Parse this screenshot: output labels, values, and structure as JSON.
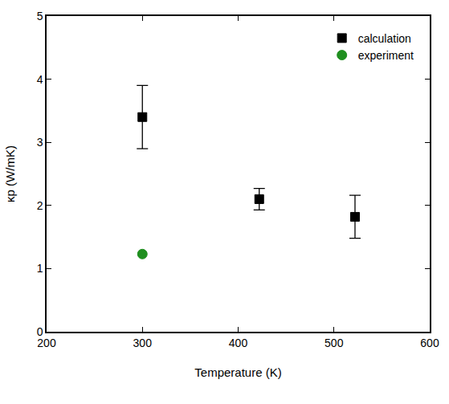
{
  "chart_data": {
    "type": "scatter",
    "x_label": "Temperature (K)",
    "y_label": "κp (W/mK)",
    "xlim": [
      200,
      600
    ],
    "xticks": [
      200,
      300,
      400,
      500,
      600
    ],
    "ylim": [
      0,
      5
    ],
    "yticks": [
      0,
      1,
      2,
      3,
      4,
      5
    ],
    "grid": false,
    "legend": "upper right",
    "series": [
      {
        "name": "calculation",
        "color": "#000000",
        "marker": "square",
        "x": [
          300,
          422,
          522
        ],
        "values": [
          3.4,
          2.1,
          1.82
        ],
        "errors": [
          0.5,
          0.17,
          0.34
        ]
      },
      {
        "name": "experiment",
        "color": "#1f8f1f",
        "marker": "circle",
        "x": [
          300
        ],
        "values": [
          1.23
        ]
      }
    ]
  }
}
